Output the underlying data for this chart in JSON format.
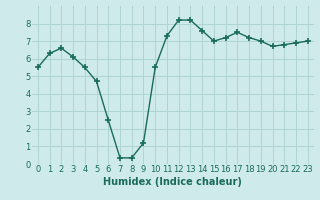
{
  "x": [
    0,
    1,
    2,
    3,
    4,
    5,
    6,
    7,
    8,
    9,
    10,
    11,
    12,
    13,
    14,
    15,
    16,
    17,
    18,
    19,
    20,
    21,
    22,
    23
  ],
  "y": [
    5.5,
    6.3,
    6.6,
    6.1,
    5.5,
    4.7,
    2.5,
    0.35,
    0.35,
    1.2,
    5.5,
    7.3,
    8.2,
    8.2,
    7.6,
    7.0,
    7.2,
    7.5,
    7.2,
    7.0,
    6.7,
    6.8,
    6.9,
    7.0
  ],
  "line_color": "#1a6b5a",
  "marker": "+",
  "marker_size": 4,
  "marker_lw": 1.2,
  "line_width": 1.0,
  "background_color": "#ceeaea",
  "grid_color": "#b0d4d4",
  "xlabel": "Humidex (Indice chaleur)",
  "xlabel_fontsize": 7,
  "xlim": [
    -0.5,
    23.5
  ],
  "ylim": [
    0,
    9
  ],
  "yticks": [
    0,
    1,
    2,
    3,
    4,
    5,
    6,
    7,
    8
  ],
  "xticks": [
    0,
    1,
    2,
    3,
    4,
    5,
    6,
    7,
    8,
    9,
    10,
    11,
    12,
    13,
    14,
    15,
    16,
    17,
    18,
    19,
    20,
    21,
    22,
    23
  ],
  "tick_fontsize": 6
}
